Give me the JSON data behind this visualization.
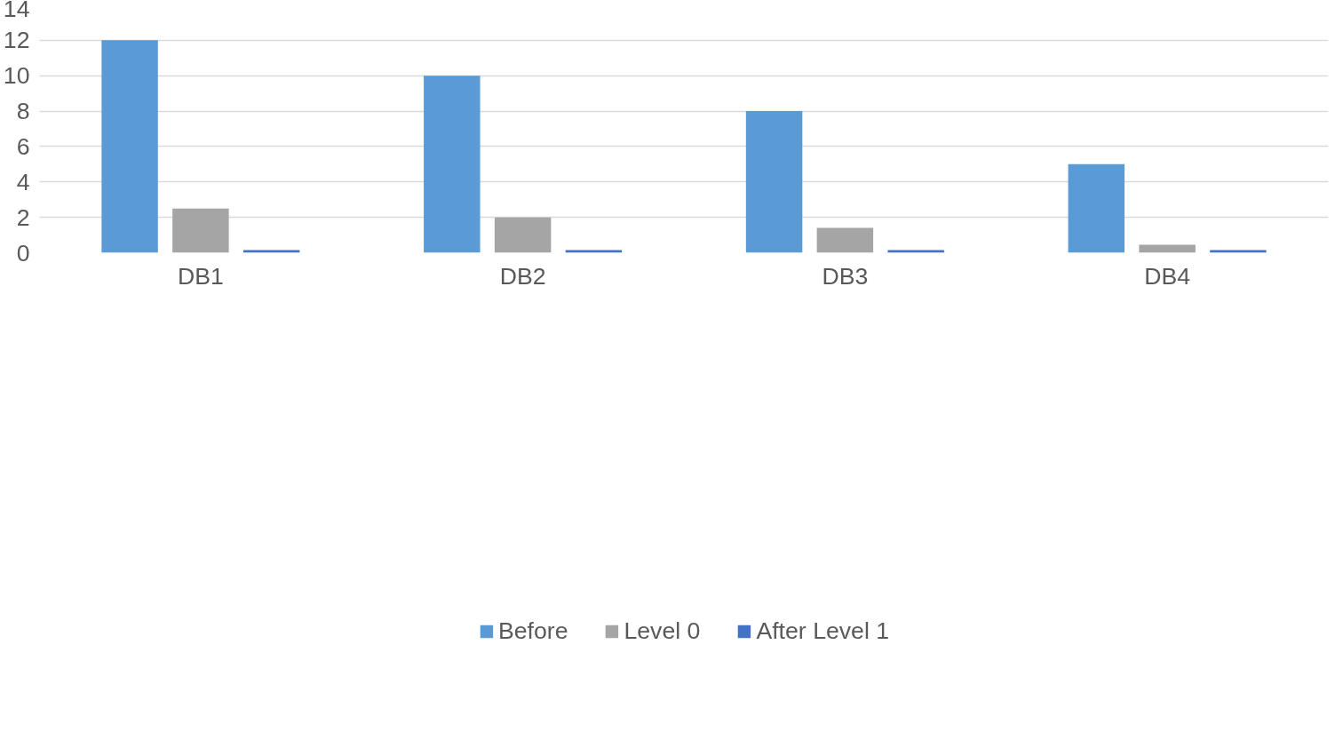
{
  "chart_data": {
    "type": "bar",
    "categories": [
      "DB1",
      "DB2",
      "DB3",
      "DB4"
    ],
    "series": [
      {
        "name": "Before",
        "color": "#5b9bd5",
        "values": [
          12,
          10,
          8,
          5
        ]
      },
      {
        "name": "Level 0",
        "color": "#a5a5a5",
        "values": [
          2.5,
          2,
          1.4,
          0.45
        ]
      },
      {
        "name": "After Level 1",
        "color": "#4472c4",
        "values": [
          0.15,
          0.15,
          0.15,
          0.15
        ]
      }
    ],
    "ylim": [
      0,
      14
    ],
    "yticks": [
      0,
      2,
      4,
      6,
      8,
      10,
      12,
      14
    ],
    "grid": "y",
    "legend": "bottom"
  }
}
